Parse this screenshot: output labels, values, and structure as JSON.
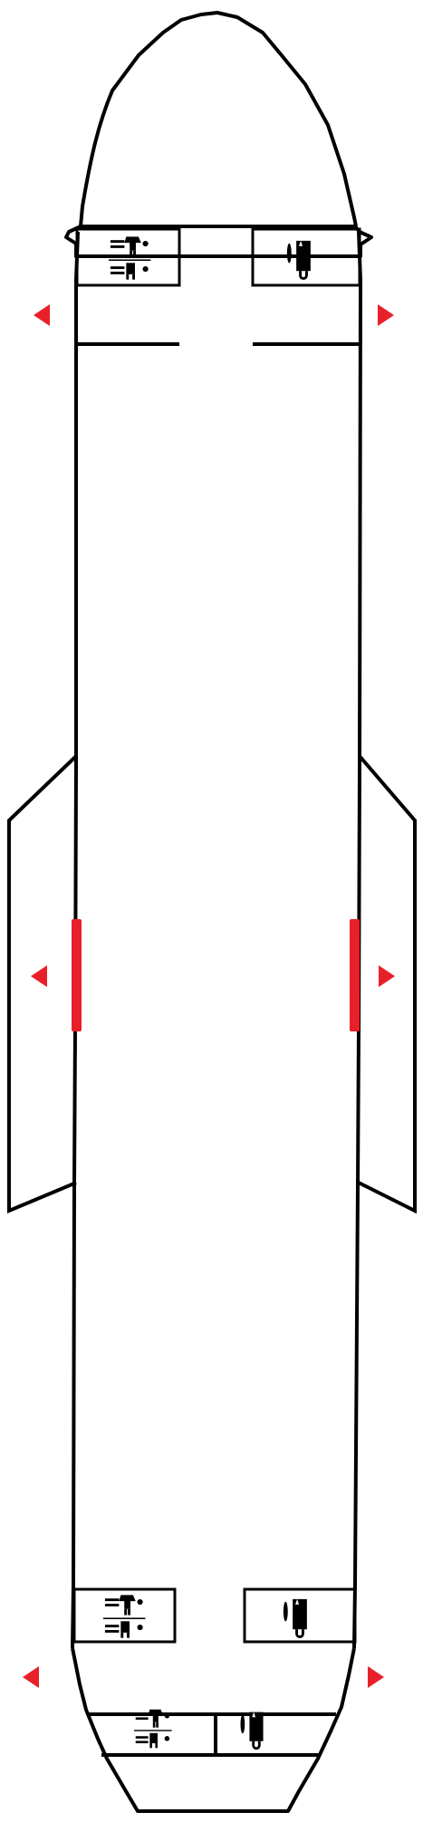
{
  "colors": {
    "outline": "#000000",
    "exit": "#e8202a",
    "background": "#ffffff",
    "icon": "#000000"
  },
  "cabin": {
    "modules": [
      {
        "id": "front-lavatory",
        "icon": "lavatory-icon"
      },
      {
        "id": "front-galley",
        "icon": "galley-icon"
      },
      {
        "id": "mid-rear-lavatory",
        "icon": "lavatory-icon"
      },
      {
        "id": "mid-rear-galley",
        "icon": "galley-icon"
      },
      {
        "id": "rear-lavatory",
        "icon": "lavatory-icon"
      },
      {
        "id": "rear-galley",
        "icon": "galley-icon"
      }
    ],
    "exits": [
      {
        "id": "front-left-exit",
        "icon": "exit-arrow-left-icon"
      },
      {
        "id": "front-right-exit",
        "icon": "exit-arrow-right-icon"
      },
      {
        "id": "overwing-left-exit",
        "icon": "exit-arrow-left-icon"
      },
      {
        "id": "overwing-right-exit",
        "icon": "exit-arrow-right-icon"
      },
      {
        "id": "rear-left-exit",
        "icon": "exit-arrow-left-icon"
      },
      {
        "id": "rear-right-exit",
        "icon": "exit-arrow-right-icon"
      }
    ]
  }
}
